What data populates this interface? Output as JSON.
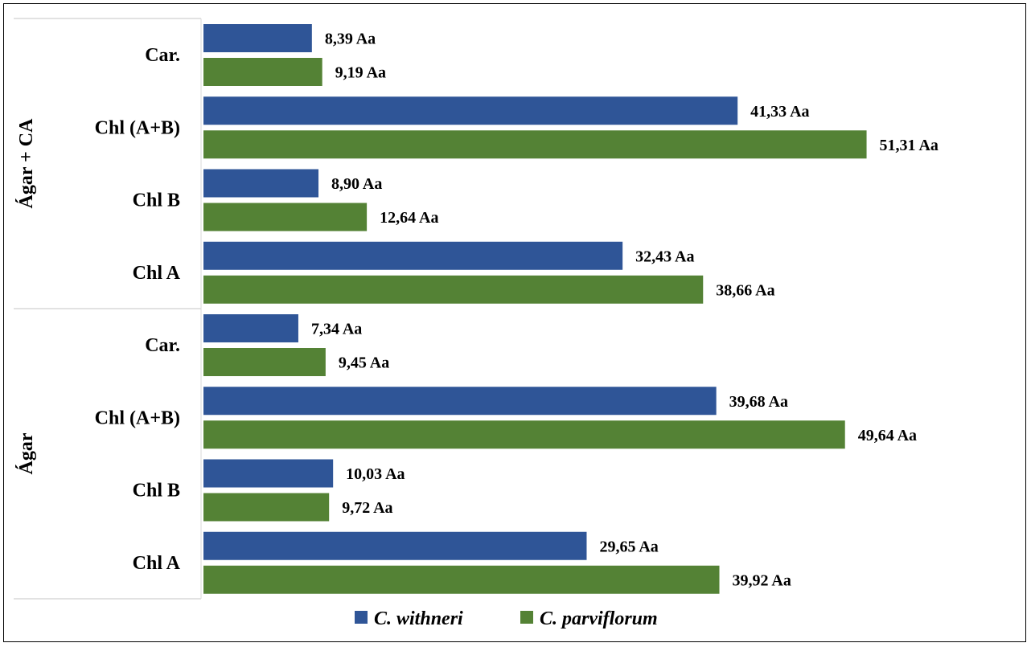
{
  "chart_data": {
    "type": "bar",
    "orientation": "horizontal",
    "title": "",
    "xlabel": "",
    "ylabel": "",
    "xlim": [
      0,
      52.5
    ],
    "grid": false,
    "legend_position": "bottom",
    "groups": [
      {
        "name": "Ágar + CA",
        "categories": [
          "Car.",
          "Chl (A+B)",
          "Chl B",
          "Chl A"
        ],
        "series": [
          {
            "name": "C. withneri",
            "color": "#2F5597",
            "values": [
              8.39,
              41.33,
              8.9,
              32.43
            ],
            "labels": [
              "8,39 Aa",
              "41,33 Aa",
              "8,90 Aa",
              "32,43 Aa"
            ]
          },
          {
            "name": "C. parviflorum",
            "color": "#548235",
            "values": [
              9.19,
              51.31,
              12.64,
              38.66
            ],
            "labels": [
              "9,19 Aa",
              "51,31 Aa",
              "12,64 Aa",
              "38,66 Aa"
            ]
          }
        ]
      },
      {
        "name": "Ágar",
        "categories": [
          "Car.",
          "Chl (A+B)",
          "Chl B",
          "Chl A"
        ],
        "series": [
          {
            "name": "C. withneri",
            "color": "#2F5597",
            "values": [
              7.34,
              39.68,
              10.03,
              29.65
            ],
            "labels": [
              "7,34 Aa",
              "39,68 Aa",
              "10,03 Aa",
              "29,65 Aa"
            ]
          },
          {
            "name": "C. parviflorum",
            "color": "#548235",
            "values": [
              9.45,
              49.64,
              9.72,
              39.92
            ],
            "labels": [
              "9,45 Aa",
              "49,64 Aa",
              "9,72 Aa",
              "39,92 Aa"
            ]
          }
        ]
      }
    ],
    "legend": [
      {
        "name": "C. withneri",
        "color": "#2F5597"
      },
      {
        "name": "C. parviflorum",
        "color": "#548235"
      }
    ]
  }
}
